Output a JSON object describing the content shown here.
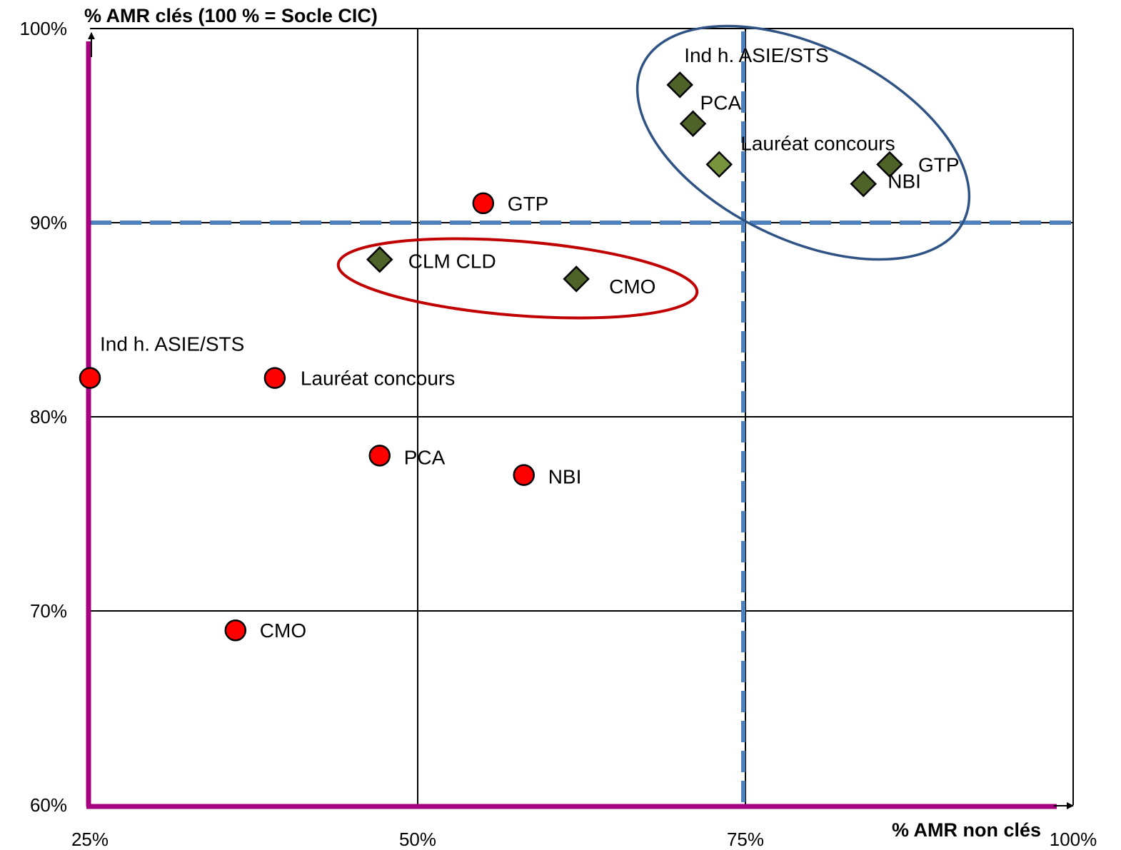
{
  "chart_data": {
    "type": "scatter",
    "title": "",
    "xlabel": "% AMR non clés",
    "ylabel": "% AMR clés (100 % = Socle CIC)",
    "xlim": [
      25,
      100
    ],
    "ylim": [
      60,
      100
    ],
    "x_ticks": [
      25,
      50,
      75,
      100
    ],
    "y_ticks": [
      60,
      70,
      80,
      90,
      100
    ],
    "x_tick_labels": [
      "25%",
      "50%",
      "75%",
      "100%"
    ],
    "y_tick_labels": [
      "60%",
      "70%",
      "80%",
      "90%",
      "100%"
    ],
    "grid": true,
    "reference_lines": {
      "x": 75,
      "y": 90
    },
    "series": [
      {
        "marker": "circle",
        "color": "#ff0000",
        "points": [
          {
            "label": "Ind h. ASIE/STS",
            "x": 25.0,
            "y": 82.0
          },
          {
            "label": "Lauréat concours",
            "x": 39.1,
            "y": 82.0
          },
          {
            "label": "GTP",
            "x": 55.0,
            "y": 91.0
          },
          {
            "label": "PCA",
            "x": 47.1,
            "y": 78.0
          },
          {
            "label": "NBI",
            "x": 58.1,
            "y": 77.0
          },
          {
            "label": "CMO",
            "x": 36.1,
            "y": 69.0
          }
        ]
      },
      {
        "marker": "diamond",
        "color": "#4f6228",
        "points": [
          {
            "label": "Ind h. ASIE/STS",
            "x": 70.0,
            "y": 97.1
          },
          {
            "label": "PCA",
            "x": 71.0,
            "y": 95.1
          },
          {
            "label": "Lauréat concours",
            "x": 73.0,
            "y": 93.0
          },
          {
            "label": "GTP",
            "x": 86.0,
            "y": 93.0
          },
          {
            "label": "NBI",
            "x": 84.0,
            "y": 92.0
          },
          {
            "label": "CLM CLD",
            "x": 47.1,
            "y": 88.1
          },
          {
            "label": "CMO",
            "x": 62.1,
            "y": 87.1
          }
        ]
      }
    ]
  }
}
